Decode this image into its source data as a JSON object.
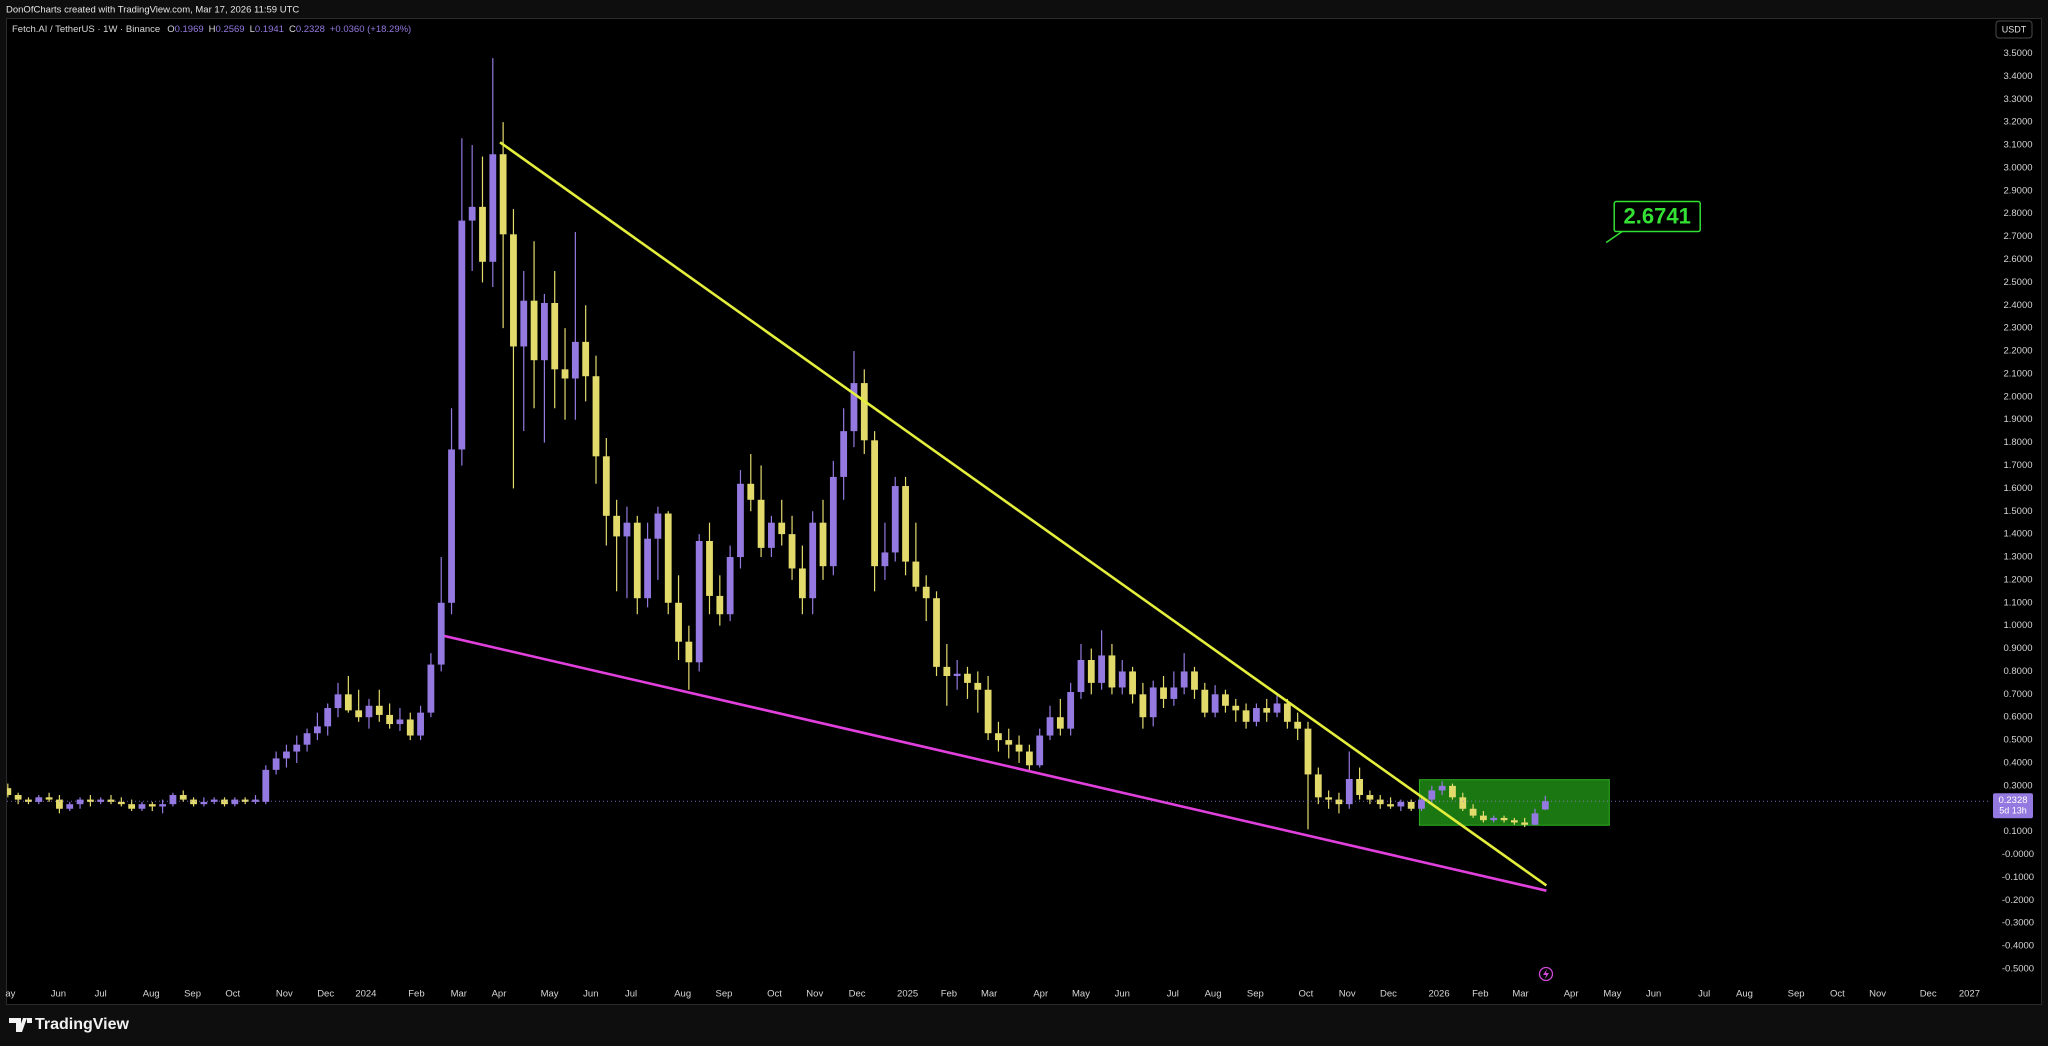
{
  "header": {
    "caption": "DonOfCharts created with TradingView.com, Mar 17, 2026 11:59 UTC"
  },
  "chart_data": {
    "type": "candlestick",
    "title": "Fetch.AI / TetherUS · 1W · Binance",
    "legend_labels": {
      "open": "O",
      "high": "H",
      "low": "L",
      "close": "C"
    },
    "change": "+0.0360 (+18.29%)",
    "currency": "USDT",
    "countdown": "5d 13h",
    "grid": false,
    "series": [
      {
        "up_color": "#9479e0",
        "down_color": "#e3da6c",
        "open": [
          0.29,
          0.26,
          0.24,
          0.23,
          0.25,
          0.24,
          0.2,
          0.22,
          0.24,
          0.23,
          0.24,
          0.23,
          0.22,
          0.2,
          0.22,
          0.21,
          0.22,
          0.26,
          0.24,
          0.22,
          0.23,
          0.24,
          0.22,
          0.24,
          0.23,
          0.23,
          0.37,
          0.42,
          0.45,
          0.48,
          0.53,
          0.56,
          0.64,
          0.7,
          0.63,
          0.6,
          0.65,
          0.61,
          0.57,
          0.59,
          0.52,
          0.62,
          0.83,
          1.1,
          1.77,
          2.77,
          2.83,
          2.59,
          3.06,
          2.71,
          2.22,
          2.42,
          2.16,
          2.41,
          2.12,
          2.08,
          2.24,
          2.09,
          1.74,
          1.48,
          1.39,
          1.45,
          1.12,
          1.38,
          1.49,
          1.1,
          0.93,
          0.84,
          1.37,
          1.13,
          1.05,
          1.3,
          1.62,
          1.55,
          1.34,
          1.45,
          1.4,
          1.25,
          1.12,
          1.45,
          1.26,
          1.65,
          1.85,
          2.06,
          1.81,
          1.26,
          1.32,
          1.61,
          1.28,
          1.17,
          1.12,
          0.82,
          0.78,
          0.79,
          0.75,
          0.72,
          0.53,
          0.5,
          0.48,
          0.45,
          0.39,
          0.52,
          0.6,
          0.55,
          0.71,
          0.85,
          0.75,
          0.87,
          0.73,
          0.8,
          0.7,
          0.6,
          0.73,
          0.68,
          0.73,
          0.8,
          0.72,
          0.62,
          0.7,
          0.65,
          0.63,
          0.58,
          0.64,
          0.62,
          0.66,
          0.58,
          0.55,
          0.35,
          0.25,
          0.24,
          0.22,
          0.33,
          0.26,
          0.24,
          0.22,
          0.21,
          0.23,
          0.2,
          0.24,
          0.28,
          0.3,
          0.25,
          0.2,
          0.17,
          0.15,
          0.16,
          0.15,
          0.14,
          0.13,
          0.1969
        ],
        "high": [
          0.31,
          0.27,
          0.25,
          0.26,
          0.27,
          0.26,
          0.23,
          0.25,
          0.26,
          0.25,
          0.26,
          0.25,
          0.24,
          0.23,
          0.23,
          0.24,
          0.27,
          0.28,
          0.25,
          0.25,
          0.25,
          0.25,
          0.25,
          0.25,
          0.26,
          0.39,
          0.45,
          0.48,
          0.52,
          0.55,
          0.62,
          0.66,
          0.75,
          0.78,
          0.72,
          0.68,
          0.72,
          0.66,
          0.64,
          0.62,
          0.65,
          0.88,
          1.3,
          1.95,
          3.13,
          3.1,
          3.05,
          3.48,
          3.2,
          2.82,
          2.55,
          2.68,
          2.45,
          2.55,
          2.3,
          2.72,
          2.4,
          2.18,
          1.82,
          1.55,
          1.52,
          1.48,
          1.45,
          1.52,
          1.5,
          1.22,
          1.0,
          1.4,
          1.45,
          1.22,
          1.35,
          1.68,
          1.75,
          1.7,
          1.48,
          1.55,
          1.48,
          1.35,
          1.5,
          1.55,
          1.72,
          1.95,
          2.2,
          2.12,
          1.85,
          1.45,
          1.65,
          1.65,
          1.45,
          1.22,
          1.15,
          0.92,
          0.85,
          0.82,
          0.8,
          0.78,
          0.58,
          0.55,
          0.52,
          0.48,
          0.55,
          0.65,
          0.68,
          0.75,
          0.92,
          0.9,
          0.98,
          0.92,
          0.85,
          0.82,
          0.75,
          0.76,
          0.78,
          0.8,
          0.88,
          0.82,
          0.75,
          0.74,
          0.72,
          0.68,
          0.66,
          0.66,
          0.68,
          0.7,
          0.68,
          0.62,
          0.58,
          0.38,
          0.28,
          0.27,
          0.45,
          0.38,
          0.28,
          0.26,
          0.25,
          0.24,
          0.24,
          0.25,
          0.3,
          0.32,
          0.31,
          0.27,
          0.22,
          0.19,
          0.17,
          0.17,
          0.16,
          0.16,
          0.2,
          0.2569
        ],
        "low": [
          0.25,
          0.22,
          0.22,
          0.22,
          0.23,
          0.18,
          0.19,
          0.2,
          0.21,
          0.22,
          0.22,
          0.21,
          0.19,
          0.19,
          0.19,
          0.18,
          0.21,
          0.23,
          0.21,
          0.21,
          0.22,
          0.21,
          0.21,
          0.22,
          0.22,
          0.22,
          0.35,
          0.38,
          0.4,
          0.45,
          0.5,
          0.52,
          0.6,
          0.62,
          0.58,
          0.55,
          0.58,
          0.55,
          0.54,
          0.5,
          0.5,
          0.6,
          0.8,
          1.05,
          1.7,
          2.55,
          2.5,
          2.48,
          2.3,
          1.6,
          1.85,
          1.95,
          1.8,
          1.95,
          1.9,
          1.9,
          1.98,
          1.62,
          1.35,
          1.15,
          1.12,
          1.05,
          1.08,
          1.2,
          1.05,
          0.85,
          0.72,
          0.8,
          1.05,
          1.0,
          1.02,
          1.25,
          1.5,
          1.3,
          1.3,
          1.35,
          1.2,
          1.05,
          1.05,
          1.2,
          1.22,
          1.55,
          1.78,
          1.75,
          1.15,
          1.2,
          1.28,
          1.22,
          1.15,
          1.02,
          0.78,
          0.65,
          0.72,
          0.68,
          0.62,
          0.5,
          0.45,
          0.42,
          0.4,
          0.36,
          0.38,
          0.5,
          0.52,
          0.52,
          0.68,
          0.7,
          0.72,
          0.7,
          0.7,
          0.66,
          0.55,
          0.56,
          0.64,
          0.65,
          0.7,
          0.68,
          0.6,
          0.6,
          0.62,
          0.58,
          0.55,
          0.56,
          0.58,
          0.6,
          0.55,
          0.5,
          0.11,
          0.22,
          0.2,
          0.18,
          0.2,
          0.24,
          0.22,
          0.2,
          0.2,
          0.19,
          0.19,
          0.19,
          0.22,
          0.26,
          0.24,
          0.19,
          0.16,
          0.14,
          0.14,
          0.14,
          0.13,
          0.12,
          0.13,
          0.1941
        ],
        "close": [
          0.26,
          0.24,
          0.23,
          0.25,
          0.24,
          0.2,
          0.22,
          0.24,
          0.23,
          0.24,
          0.23,
          0.22,
          0.2,
          0.22,
          0.21,
          0.22,
          0.26,
          0.24,
          0.22,
          0.23,
          0.24,
          0.22,
          0.24,
          0.23,
          0.24,
          0.37,
          0.42,
          0.45,
          0.48,
          0.53,
          0.56,
          0.64,
          0.7,
          0.63,
          0.6,
          0.65,
          0.61,
          0.57,
          0.59,
          0.52,
          0.62,
          0.83,
          1.1,
          1.77,
          2.77,
          2.83,
          2.59,
          3.06,
          2.71,
          2.22,
          2.42,
          2.16,
          2.41,
          2.12,
          2.08,
          2.24,
          2.09,
          1.74,
          1.48,
          1.39,
          1.45,
          1.12,
          1.38,
          1.49,
          1.1,
          0.93,
          0.84,
          1.37,
          1.13,
          1.05,
          1.3,
          1.62,
          1.55,
          1.34,
          1.45,
          1.4,
          1.25,
          1.12,
          1.45,
          1.26,
          1.65,
          1.85,
          2.06,
          1.81,
          1.26,
          1.32,
          1.61,
          1.28,
          1.17,
          1.12,
          0.82,
          0.78,
          0.79,
          0.75,
          0.72,
          0.53,
          0.5,
          0.48,
          0.45,
          0.39,
          0.52,
          0.6,
          0.55,
          0.71,
          0.85,
          0.75,
          0.87,
          0.73,
          0.8,
          0.7,
          0.6,
          0.73,
          0.68,
          0.73,
          0.8,
          0.72,
          0.62,
          0.7,
          0.65,
          0.63,
          0.58,
          0.64,
          0.62,
          0.66,
          0.58,
          0.55,
          0.35,
          0.25,
          0.24,
          0.22,
          0.33,
          0.26,
          0.24,
          0.22,
          0.21,
          0.23,
          0.2,
          0.24,
          0.28,
          0.3,
          0.25,
          0.2,
          0.17,
          0.15,
          0.16,
          0.15,
          0.14,
          0.13,
          0.18,
          0.2328
        ]
      }
    ],
    "xlim": [
      -0.08,
      191.9
    ],
    "xticks": [
      {
        "value": 0.25,
        "label": "ay"
      },
      {
        "value": 4.9,
        "label": "Jun"
      },
      {
        "value": 9.0,
        "label": "Jul"
      },
      {
        "value": 13.9,
        "label": "Aug"
      },
      {
        "value": 17.9,
        "label": "Sep"
      },
      {
        "value": 21.8,
        "label": "Oct"
      },
      {
        "value": 26.8,
        "label": "Nov"
      },
      {
        "value": 30.8,
        "label": "Dec"
      },
      {
        "value": 34.7,
        "label": "2024"
      },
      {
        "value": 39.6,
        "label": "Feb"
      },
      {
        "value": 43.7,
        "label": "Mar"
      },
      {
        "value": 47.6,
        "label": "Apr"
      },
      {
        "value": 52.5,
        "label": "May"
      },
      {
        "value": 56.5,
        "label": "Jun"
      },
      {
        "value": 60.4,
        "label": "Jul"
      },
      {
        "value": 65.4,
        "label": "Aug"
      },
      {
        "value": 69.4,
        "label": "Sep"
      },
      {
        "value": 74.3,
        "label": "Oct"
      },
      {
        "value": 78.2,
        "label": "Nov"
      },
      {
        "value": 82.3,
        "label": "Dec"
      },
      {
        "value": 87.2,
        "label": "2025"
      },
      {
        "value": 91.2,
        "label": "Feb"
      },
      {
        "value": 95.1,
        "label": "Mar"
      },
      {
        "value": 100.1,
        "label": "Apr"
      },
      {
        "value": 104.0,
        "label": "May"
      },
      {
        "value": 108.0,
        "label": "Jun"
      },
      {
        "value": 112.9,
        "label": "Jul"
      },
      {
        "value": 116.8,
        "label": "Aug"
      },
      {
        "value": 120.9,
        "label": "Sep"
      },
      {
        "value": 125.8,
        "label": "Oct"
      },
      {
        "value": 129.8,
        "label": "Nov"
      },
      {
        "value": 133.8,
        "label": "Dec"
      },
      {
        "value": 138.7,
        "label": "2026"
      },
      {
        "value": 142.7,
        "label": "Feb"
      },
      {
        "value": 146.6,
        "label": "Mar"
      },
      {
        "value": 151.5,
        "label": "Apr"
      },
      {
        "value": 155.5,
        "label": "May"
      },
      {
        "value": 159.5,
        "label": "Jun"
      },
      {
        "value": 164.4,
        "label": "Jul"
      },
      {
        "value": 168.3,
        "label": "Aug"
      },
      {
        "value": 173.3,
        "label": "Sep"
      },
      {
        "value": 177.3,
        "label": "Oct"
      },
      {
        "value": 181.2,
        "label": "Nov"
      },
      {
        "value": 186.1,
        "label": "Dec"
      },
      {
        "value": 190.1,
        "label": "2027"
      }
    ],
    "ylim": [
      -0.557,
      3.546
    ],
    "yticks": [
      {
        "value": 3.5,
        "label": "3.5000"
      },
      {
        "value": 3.4,
        "label": "3.4000"
      },
      {
        "value": 3.3,
        "label": "3.3000"
      },
      {
        "value": 3.2,
        "label": "3.2000"
      },
      {
        "value": 3.1,
        "label": "3.1000"
      },
      {
        "value": 3.0,
        "label": "3.0000"
      },
      {
        "value": 2.9,
        "label": "2.9000"
      },
      {
        "value": 2.8,
        "label": "2.8000"
      },
      {
        "value": 2.7,
        "label": "2.7000"
      },
      {
        "value": 2.6,
        "label": "2.6000"
      },
      {
        "value": 2.5,
        "label": "2.5000"
      },
      {
        "value": 2.4,
        "label": "2.4000"
      },
      {
        "value": 2.3,
        "label": "2.3000"
      },
      {
        "value": 2.2,
        "label": "2.2000"
      },
      {
        "value": 2.1,
        "label": "2.1000"
      },
      {
        "value": 2.0,
        "label": "2.0000"
      },
      {
        "value": 1.9,
        "label": "1.9000"
      },
      {
        "value": 1.8,
        "label": "1.8000"
      },
      {
        "value": 1.7,
        "label": "1.7000"
      },
      {
        "value": 1.6,
        "label": "1.6000"
      },
      {
        "value": 1.5,
        "label": "1.5000"
      },
      {
        "value": 1.4,
        "label": "1.4000"
      },
      {
        "value": 1.3,
        "label": "1.3000"
      },
      {
        "value": 1.2,
        "label": "1.2000"
      },
      {
        "value": 1.1,
        "label": "1.1000"
      },
      {
        "value": 1.0,
        "label": "1.0000"
      },
      {
        "value": 0.9,
        "label": "0.9000"
      },
      {
        "value": 0.8,
        "label": "0.8000"
      },
      {
        "value": 0.7,
        "label": "0.7000"
      },
      {
        "value": 0.6,
        "label": "0.6000"
      },
      {
        "value": 0.5,
        "label": "0.5000"
      },
      {
        "value": 0.4,
        "label": "0.4000"
      },
      {
        "value": 0.3,
        "label": "0.3000"
      },
      {
        "value": 0.2,
        "label": "0.2000"
      },
      {
        "value": 0.1,
        "label": "0.1000"
      },
      {
        "value": 0,
        "label": "-0.0000"
      },
      {
        "value": -0.1,
        "label": "-0.1000"
      },
      {
        "value": -0.2,
        "label": "-0.2000"
      },
      {
        "value": -0.3,
        "label": "-0.3000"
      },
      {
        "value": -0.4,
        "label": "-0.4000"
      },
      {
        "value": -0.5,
        "label": "-0.5000"
      }
    ],
    "drawings": [
      {
        "type": "trendline",
        "color": "#e4ee3c",
        "x": [
          47.7,
          149.1
        ],
        "y": [
          3.112,
          -0.135
        ]
      },
      {
        "type": "trendline",
        "color": "#e040dc",
        "x": [
          42.3,
          149.1
        ],
        "y": [
          0.955,
          -0.158
        ]
      },
      {
        "type": "rectangle",
        "color": "#1f8c14",
        "x": [
          136.8,
          155.2
        ],
        "y": [
          0.327,
          0.128
        ]
      }
    ],
    "price_note": {
      "value": 2.6741,
      "x": 154.9,
      "color": "#33e033"
    }
  },
  "footer": {
    "brand": "TradingView"
  }
}
